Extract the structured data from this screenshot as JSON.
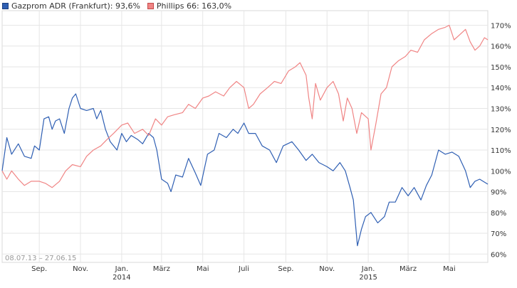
{
  "legend": [
    {
      "text": "Gazprom ADR (Frankfurt): 93,6%",
      "color": "#2f5fb3"
    },
    {
      "text": "Phillips 66: 163,0%",
      "color": "#f08585"
    }
  ],
  "chart_data": {
    "type": "line",
    "title": "",
    "range_label": "08.07.13 – 27.06.15",
    "x_tick_labels": [
      "Sep.",
      "Nov.",
      "Jan.",
      "März",
      "Mai",
      "Juli",
      "Sep.",
      "Nov.",
      "Jan.",
      "März",
      "Mai"
    ],
    "year_labels": [
      {
        "text": "2014",
        "under": "Jan.",
        "index": 2
      },
      {
        "text": "2015",
        "under": "Jan.",
        "index": 8
      }
    ],
    "y_tick_labels": [
      "60%",
      "70%",
      "80%",
      "90%",
      "100%",
      "110%",
      "120%",
      "130%",
      "140%",
      "150%",
      "160%",
      "170%"
    ],
    "y_ticks": [
      60,
      70,
      80,
      90,
      100,
      110,
      120,
      130,
      140,
      150,
      160,
      170
    ],
    "ylim": [
      56,
      177
    ],
    "xlim": [
      "2013-07-08",
      "2015-06-27"
    ],
    "x_ticks": [
      "2013-09-01",
      "2013-11-01",
      "2014-01-01",
      "2014-03-01",
      "2014-05-01",
      "2014-07-01",
      "2014-09-01",
      "2014-11-01",
      "2015-01-01",
      "2015-03-01",
      "2015-05-01"
    ],
    "grid": true,
    "legend_position": "top-left",
    "series": [
      {
        "name": "Gazprom ADR (Frankfurt)",
        "color": "#2f5fb3",
        "points": [
          [
            "2013-07-08",
            100
          ],
          [
            "2013-07-15",
            116
          ],
          [
            "2013-07-22",
            108
          ],
          [
            "2013-08-01",
            113
          ],
          [
            "2013-08-10",
            107
          ],
          [
            "2013-08-20",
            106
          ],
          [
            "2013-08-25",
            112
          ],
          [
            "2013-09-01",
            110
          ],
          [
            "2013-09-08",
            125
          ],
          [
            "2013-09-15",
            126
          ],
          [
            "2013-09-20",
            120
          ],
          [
            "2013-09-25",
            124
          ],
          [
            "2013-10-01",
            125
          ],
          [
            "2013-10-08",
            118
          ],
          [
            "2013-10-15",
            130
          ],
          [
            "2013-10-20",
            135
          ],
          [
            "2013-10-25",
            137
          ],
          [
            "2013-11-01",
            130
          ],
          [
            "2013-11-10",
            129
          ],
          [
            "2013-11-20",
            130
          ],
          [
            "2013-11-25",
            125
          ],
          [
            "2013-12-01",
            129
          ],
          [
            "2013-12-08",
            120
          ],
          [
            "2013-12-15",
            114
          ],
          [
            "2013-12-25",
            110
          ],
          [
            "2014-01-01",
            118
          ],
          [
            "2014-01-08",
            114
          ],
          [
            "2014-01-15",
            117
          ],
          [
            "2014-01-25",
            115
          ],
          [
            "2014-02-01",
            113
          ],
          [
            "2014-02-10",
            118
          ],
          [
            "2014-02-17",
            116
          ],
          [
            "2014-02-22",
            110
          ],
          [
            "2014-03-01",
            96
          ],
          [
            "2014-03-10",
            94
          ],
          [
            "2014-03-15",
            90
          ],
          [
            "2014-03-22",
            98
          ],
          [
            "2014-04-01",
            97
          ],
          [
            "2014-04-10",
            106
          ],
          [
            "2014-04-20",
            99
          ],
          [
            "2014-04-28",
            93
          ],
          [
            "2014-05-08",
            108
          ],
          [
            "2014-05-18",
            110
          ],
          [
            "2014-05-25",
            118
          ],
          [
            "2014-06-05",
            116
          ],
          [
            "2014-06-15",
            120
          ],
          [
            "2014-06-22",
            118
          ],
          [
            "2014-07-01",
            123
          ],
          [
            "2014-07-08",
            118
          ],
          [
            "2014-07-18",
            118
          ],
          [
            "2014-07-28",
            112
          ],
          [
            "2014-08-08",
            110
          ],
          [
            "2014-08-18",
            104
          ],
          [
            "2014-08-28",
            112
          ],
          [
            "2014-09-10",
            114
          ],
          [
            "2014-09-20",
            110
          ],
          [
            "2014-10-01",
            105
          ],
          [
            "2014-10-10",
            108
          ],
          [
            "2014-10-20",
            104
          ],
          [
            "2014-11-01",
            102
          ],
          [
            "2014-11-10",
            100
          ],
          [
            "2014-11-20",
            104
          ],
          [
            "2014-11-28",
            100
          ],
          [
            "2014-12-05",
            92
          ],
          [
            "2014-12-10",
            86
          ],
          [
            "2014-12-16",
            64
          ],
          [
            "2014-12-22",
            72
          ],
          [
            "2014-12-28",
            78
          ],
          [
            "2015-01-05",
            80
          ],
          [
            "2015-01-15",
            75
          ],
          [
            "2015-01-25",
            78
          ],
          [
            "2015-02-01",
            85
          ],
          [
            "2015-02-10",
            85
          ],
          [
            "2015-02-20",
            92
          ],
          [
            "2015-03-01",
            88
          ],
          [
            "2015-03-10",
            92
          ],
          [
            "2015-03-20",
            86
          ],
          [
            "2015-03-28",
            93
          ],
          [
            "2015-04-05",
            98
          ],
          [
            "2015-04-15",
            110
          ],
          [
            "2015-04-25",
            108
          ],
          [
            "2015-05-05",
            109
          ],
          [
            "2015-05-15",
            107
          ],
          [
            "2015-05-25",
            100
          ],
          [
            "2015-06-01",
            92
          ],
          [
            "2015-06-08",
            95
          ],
          [
            "2015-06-15",
            96
          ],
          [
            "2015-06-27",
            93.6
          ]
        ]
      },
      {
        "name": "Phillips 66",
        "color": "#f08585",
        "points": [
          [
            "2013-07-08",
            100
          ],
          [
            "2013-07-15",
            96
          ],
          [
            "2013-07-22",
            100
          ],
          [
            "2013-08-01",
            96
          ],
          [
            "2013-08-10",
            93
          ],
          [
            "2013-08-20",
            95
          ],
          [
            "2013-09-01",
            95
          ],
          [
            "2013-09-10",
            94
          ],
          [
            "2013-09-20",
            92
          ],
          [
            "2013-10-01",
            95
          ],
          [
            "2013-10-10",
            100
          ],
          [
            "2013-10-20",
            103
          ],
          [
            "2013-11-01",
            102
          ],
          [
            "2013-11-10",
            107
          ],
          [
            "2013-11-20",
            110
          ],
          [
            "2013-12-01",
            112
          ],
          [
            "2013-12-10",
            115
          ],
          [
            "2013-12-20",
            118
          ],
          [
            "2014-01-01",
            122
          ],
          [
            "2014-01-10",
            123
          ],
          [
            "2014-01-20",
            118
          ],
          [
            "2014-02-01",
            120
          ],
          [
            "2014-02-10",
            117
          ],
          [
            "2014-02-20",
            125
          ],
          [
            "2014-03-01",
            122
          ],
          [
            "2014-03-10",
            126
          ],
          [
            "2014-03-20",
            127
          ],
          [
            "2014-04-01",
            128
          ],
          [
            "2014-04-10",
            132
          ],
          [
            "2014-04-20",
            130
          ],
          [
            "2014-05-01",
            135
          ],
          [
            "2014-05-10",
            136
          ],
          [
            "2014-05-20",
            138
          ],
          [
            "2014-06-01",
            136
          ],
          [
            "2014-06-10",
            140
          ],
          [
            "2014-06-20",
            143
          ],
          [
            "2014-07-01",
            140
          ],
          [
            "2014-07-08",
            130
          ],
          [
            "2014-07-15",
            132
          ],
          [
            "2014-07-25",
            137
          ],
          [
            "2014-08-05",
            140
          ],
          [
            "2014-08-15",
            143
          ],
          [
            "2014-08-25",
            142
          ],
          [
            "2014-09-05",
            148
          ],
          [
            "2014-09-15",
            150
          ],
          [
            "2014-09-22",
            152
          ],
          [
            "2014-10-01",
            146
          ],
          [
            "2014-10-05",
            135
          ],
          [
            "2014-10-10",
            125
          ],
          [
            "2014-10-15",
            142
          ],
          [
            "2014-10-22",
            134
          ],
          [
            "2014-11-01",
            140
          ],
          [
            "2014-11-10",
            143
          ],
          [
            "2014-11-18",
            137
          ],
          [
            "2014-11-25",
            124
          ],
          [
            "2014-12-01",
            135
          ],
          [
            "2014-12-08",
            130
          ],
          [
            "2014-12-15",
            118
          ],
          [
            "2014-12-22",
            128
          ],
          [
            "2015-01-01",
            125
          ],
          [
            "2015-01-05",
            110
          ],
          [
            "2015-01-12",
            122
          ],
          [
            "2015-01-20",
            137
          ],
          [
            "2015-01-28",
            140
          ],
          [
            "2015-02-05",
            150
          ],
          [
            "2015-02-15",
            153
          ],
          [
            "2015-02-25",
            155
          ],
          [
            "2015-03-05",
            158
          ],
          [
            "2015-03-15",
            157
          ],
          [
            "2015-03-25",
            163
          ],
          [
            "2015-04-05",
            166
          ],
          [
            "2015-04-15",
            168
          ],
          [
            "2015-04-25",
            169
          ],
          [
            "2015-05-01",
            170
          ],
          [
            "2015-05-08",
            163
          ],
          [
            "2015-05-15",
            165
          ],
          [
            "2015-05-25",
            168
          ],
          [
            "2015-06-01",
            162
          ],
          [
            "2015-06-08",
            158
          ],
          [
            "2015-06-15",
            160
          ],
          [
            "2015-06-22",
            164
          ],
          [
            "2015-06-27",
            163
          ]
        ]
      }
    ]
  }
}
